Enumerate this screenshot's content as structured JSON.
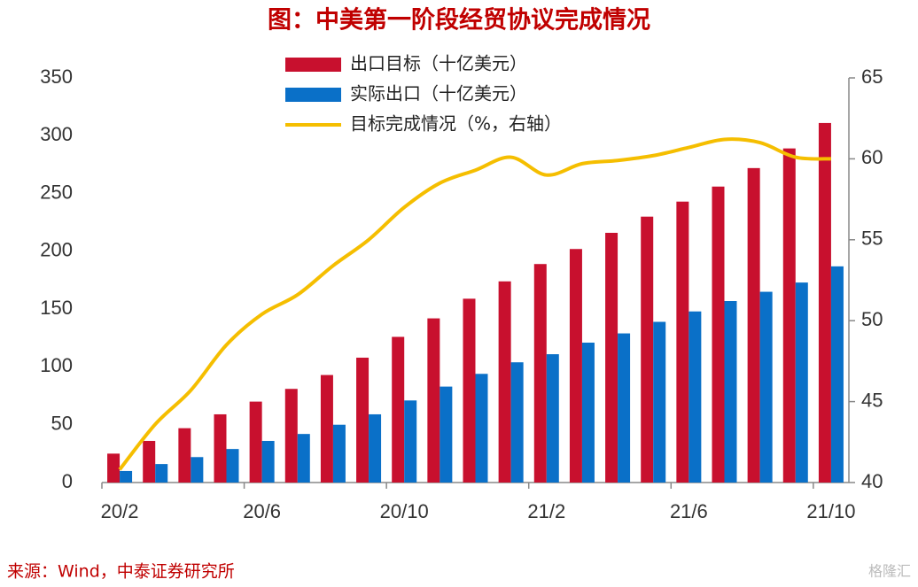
{
  "chart_data": {
    "type": "bar_line",
    "title": "图：中美第一阶段经贸协议完成情况",
    "source": "来源：Wind，中泰证券研究所",
    "watermark": "格隆汇",
    "categories": [
      "20/2",
      null,
      null,
      null,
      "20/6",
      null,
      null,
      null,
      "20/10",
      null,
      null,
      null,
      "21/2",
      null,
      null,
      null,
      "21/6",
      null,
      null,
      null,
      "21/10"
    ],
    "series": [
      {
        "name": "出口目标（十亿美元）",
        "color": "#c8102e",
        "type": "bar",
        "values": [
          25,
          36,
          47,
          59,
          70,
          81,
          93,
          108,
          126,
          142,
          159,
          174,
          189,
          202,
          216,
          230,
          243,
          256,
          272,
          289,
          311
        ]
      },
      {
        "name": "实际出口（十亿美元）",
        "color": "#0a70c8",
        "type": "bar",
        "values": [
          10,
          16,
          22,
          29,
          36,
          42,
          50,
          59,
          71,
          83,
          94,
          104,
          111,
          121,
          129,
          139,
          148,
          157,
          165,
          173,
          187
        ]
      },
      {
        "name": "目标完成情况（%，右轴）",
        "color": "#f5be00",
        "type": "line",
        "axis": "y2",
        "values": [
          40.8,
          43.6,
          45.7,
          48.5,
          50.4,
          51.6,
          53.4,
          55.0,
          57.0,
          58.5,
          59.3,
          60.1,
          59.0,
          59.7,
          59.9,
          60.2,
          60.7,
          61.2,
          61.0,
          60.1,
          60.0
        ]
      }
    ],
    "ylim": [
      0,
      350
    ],
    "yticks": [
      0,
      50,
      100,
      150,
      200,
      250,
      300,
      350
    ],
    "y2lim": [
      40,
      65
    ],
    "y2ticks": [
      40,
      45,
      50,
      55,
      60,
      65
    ],
    "legend": "top"
  }
}
